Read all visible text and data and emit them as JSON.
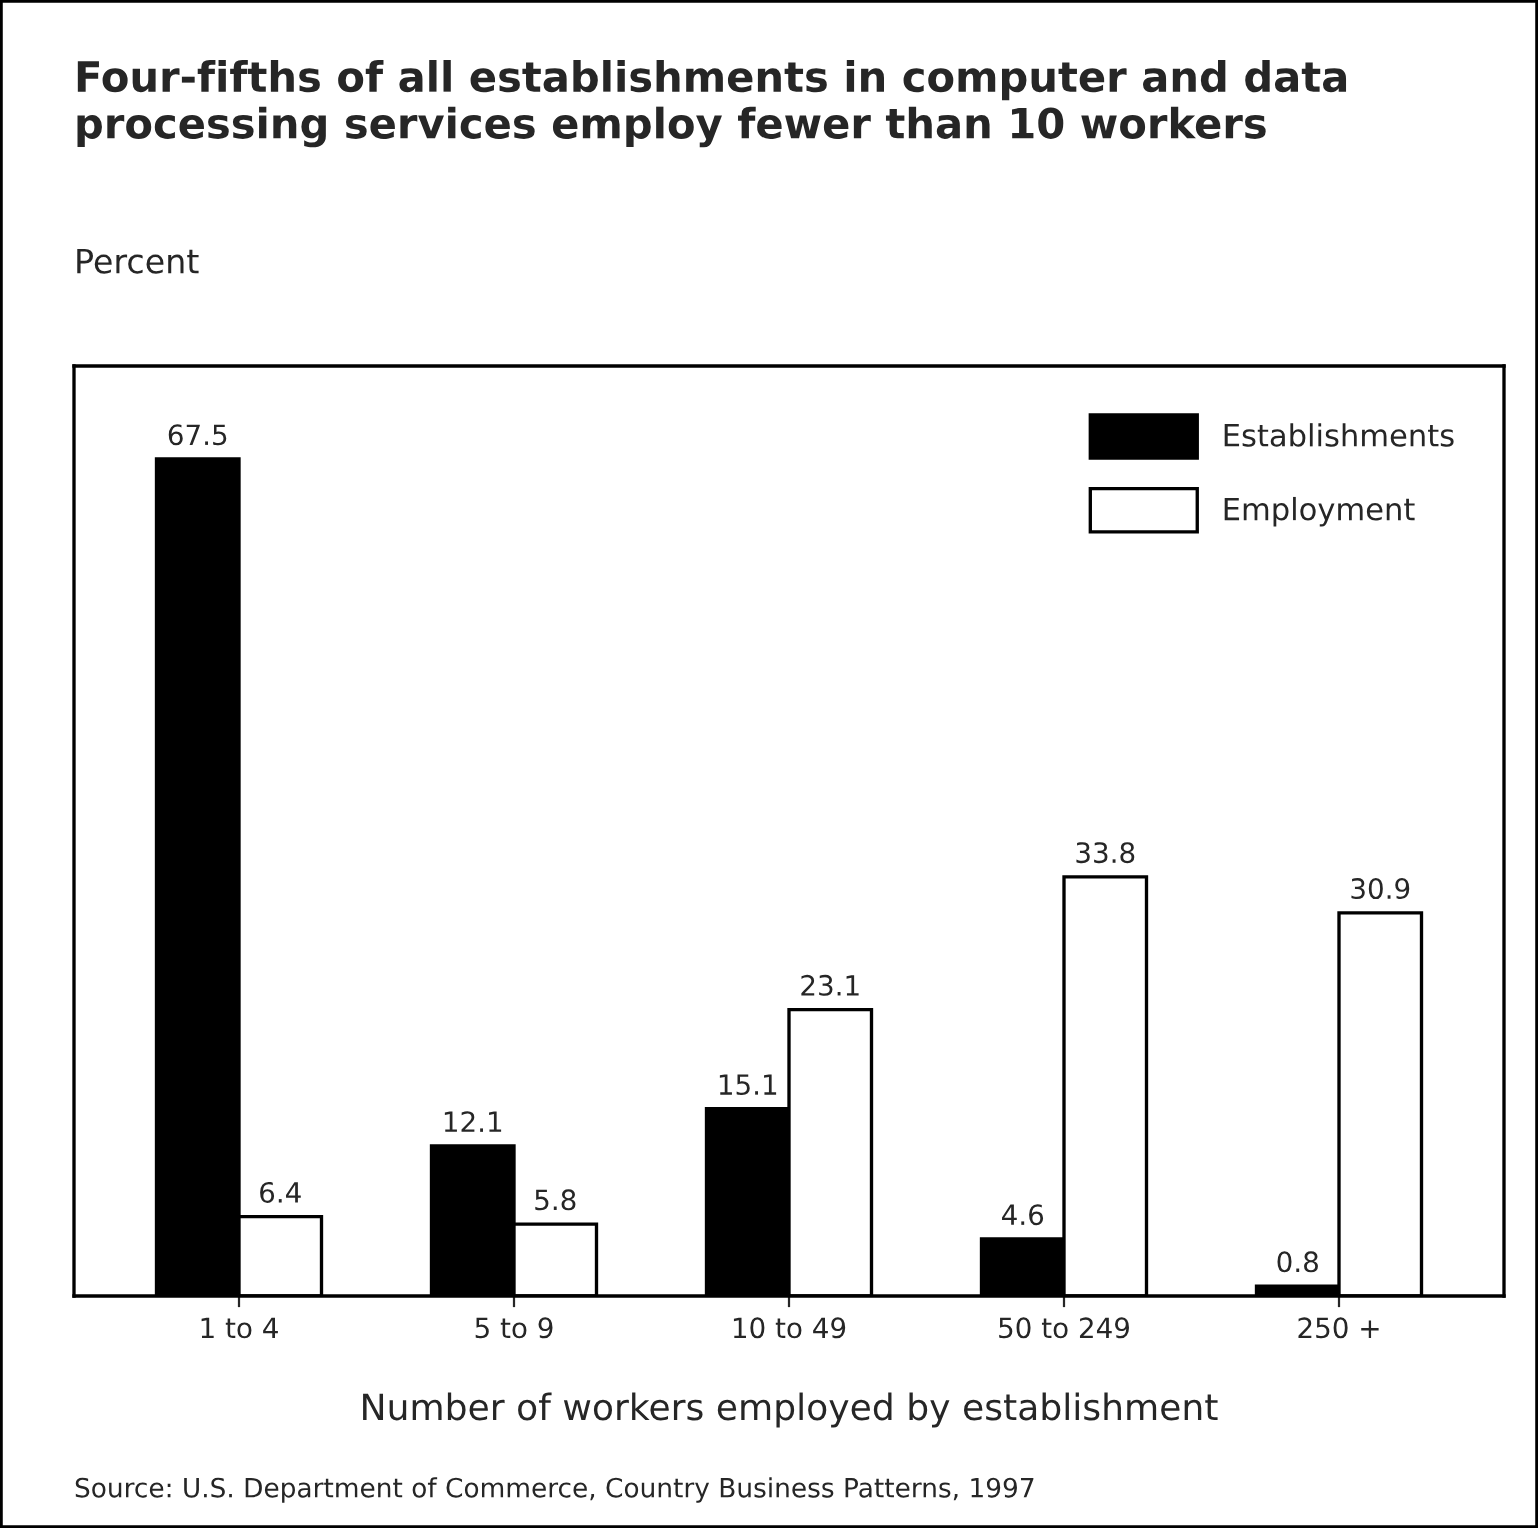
{
  "chart_data": {
    "type": "bar",
    "title": "Four-fifths of all establishments in computer and data\nprocessing services employ fewer than 10 workers",
    "ylabel": "Percent",
    "xlabel": "Number of workers employed by establishment",
    "categories": [
      "1 to 4",
      "5 to 9",
      "10 to 49",
      "50 to 249",
      "250 +"
    ],
    "series": [
      {
        "name": "Establishments",
        "color": "#000000",
        "values": [
          67.5,
          12.1,
          15.1,
          4.6,
          0.8
        ]
      },
      {
        "name": "Employment",
        "color": "#ffffff",
        "values": [
          6.4,
          5.8,
          23.1,
          33.8,
          30.9
        ]
      }
    ],
    "ylim": [
      0,
      75
    ],
    "tick_labels": "x",
    "data_labels": true,
    "legend": "top right",
    "grid": false,
    "annotations": [
      "Source: U.S. Department of Commerce, Country Business Patterns, 1997"
    ]
  }
}
